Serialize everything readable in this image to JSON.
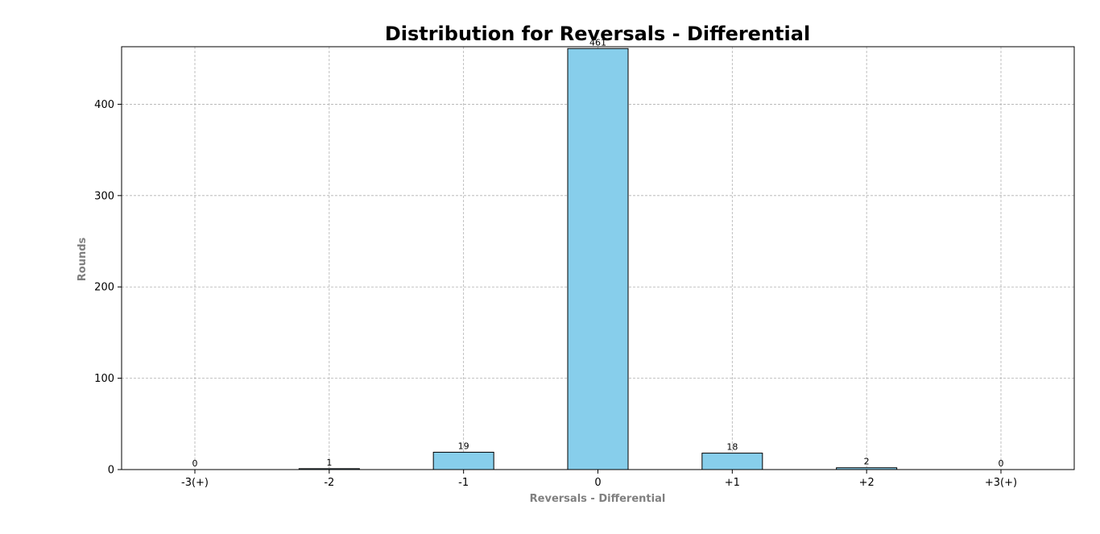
{
  "chart_data": {
    "type": "bar",
    "title": "Distribution for Reversals - Differential",
    "xlabel": "Reversals - Differential",
    "ylabel": "Rounds",
    "categories": [
      "-3(+)",
      "-2",
      "-1",
      "0",
      "+1",
      "+2",
      "+3(+)"
    ],
    "values": [
      0,
      1,
      19,
      461,
      18,
      2,
      0
    ],
    "data_labels": [
      "0",
      "1",
      "19",
      "461",
      "18",
      "2",
      "0"
    ],
    "ylim": [
      0,
      463
    ],
    "yticks": [
      0,
      100,
      200,
      300,
      400
    ],
    "ytick_labels": [
      "0",
      "100",
      "200",
      "300",
      "400"
    ],
    "grid": true,
    "legend": "none",
    "bar_color": "#87CEEB",
    "bar_edge_color": "#000000"
  }
}
